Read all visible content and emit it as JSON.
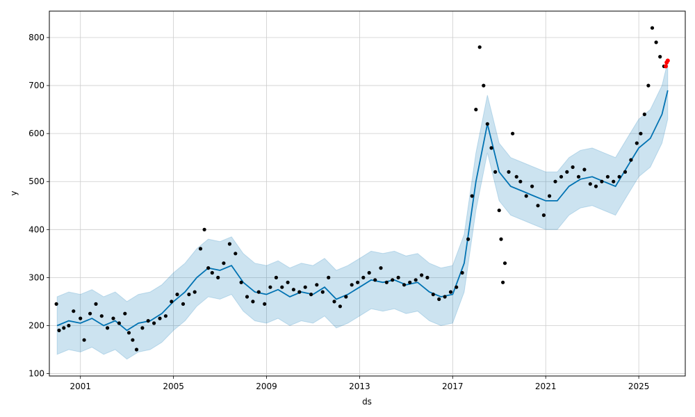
{
  "chart_data": {
    "type": "line",
    "title": "",
    "xlabel": "ds",
    "ylabel": "y",
    "xlim": [
      "1999-09-01",
      "2027-01-01"
    ],
    "ylim": [
      95,
      855
    ],
    "x_ticks": [
      "2001",
      "2005",
      "2009",
      "2013",
      "2017",
      "2021",
      "2025"
    ],
    "y_ticks": [
      100,
      200,
      300,
      400,
      500,
      600,
      700,
      800
    ],
    "grid": true,
    "legend": "none",
    "colors": {
      "observed": "#000000",
      "forecast": "#0072B2",
      "interval": "#0072B2",
      "recent": "#ff0000"
    },
    "series": [
      {
        "name": "",
        "kind": "forecast",
        "x": [
          "2000-01-01",
          "2000-07-01",
          "2001-01-01",
          "2001-07-01",
          "2002-01-01",
          "2002-07-01",
          "2003-01-01",
          "2003-07-01",
          "2004-01-01",
          "2004-07-01",
          "2005-01-01",
          "2005-07-01",
          "2006-01-01",
          "2006-07-01",
          "2007-01-01",
          "2007-07-01",
          "2008-01-01",
          "2008-07-01",
          "2009-01-01",
          "2009-07-01",
          "2010-01-01",
          "2010-07-01",
          "2011-01-01",
          "2011-07-01",
          "2012-01-01",
          "2012-07-01",
          "2013-01-01",
          "2013-07-01",
          "2014-01-01",
          "2014-07-01",
          "2015-01-01",
          "2015-07-01",
          "2016-01-01",
          "2016-07-01",
          "2017-01-01",
          "2017-07-01",
          "2018-01-01",
          "2018-07-01",
          "2019-01-01",
          "2019-07-01",
          "2020-01-01",
          "2020-07-01",
          "2021-01-01",
          "2021-07-01",
          "2022-01-01",
          "2022-07-01",
          "2023-01-01",
          "2023-07-01",
          "2024-01-01",
          "2024-07-01",
          "2025-01-01",
          "2025-07-01",
          "2026-01-01",
          "2026-04-01"
        ],
        "values": [
          200,
          210,
          205,
          215,
          200,
          210,
          190,
          205,
          210,
          225,
          250,
          270,
          300,
          320,
          315,
          325,
          290,
          270,
          265,
          275,
          260,
          270,
          265,
          280,
          255,
          265,
          280,
          295,
          290,
          295,
          285,
          290,
          270,
          260,
          265,
          330,
          500,
          620,
          520,
          490,
          480,
          470,
          460,
          460,
          490,
          505,
          510,
          500,
          490,
          530,
          570,
          590,
          640,
          690
        ]
      },
      {
        "name": "",
        "kind": "uncertainty_band",
        "x": [
          "2000-01-01",
          "2000-07-01",
          "2001-01-01",
          "2001-07-01",
          "2002-01-01",
          "2002-07-01",
          "2003-01-01",
          "2003-07-01",
          "2004-01-01",
          "2004-07-01",
          "2005-01-01",
          "2005-07-01",
          "2006-01-01",
          "2006-07-01",
          "2007-01-01",
          "2007-07-01",
          "2008-01-01",
          "2008-07-01",
          "2009-01-01",
          "2009-07-01",
          "2010-01-01",
          "2010-07-01",
          "2011-01-01",
          "2011-07-01",
          "2012-01-01",
          "2012-07-01",
          "2013-01-01",
          "2013-07-01",
          "2014-01-01",
          "2014-07-01",
          "2015-01-01",
          "2015-07-01",
          "2016-01-01",
          "2016-07-01",
          "2017-01-01",
          "2017-07-01",
          "2018-01-01",
          "2018-07-01",
          "2019-01-01",
          "2019-07-01",
          "2020-01-01",
          "2020-07-01",
          "2021-01-01",
          "2021-07-01",
          "2022-01-01",
          "2022-07-01",
          "2023-01-01",
          "2023-07-01",
          "2024-01-01",
          "2024-07-01",
          "2025-01-01",
          "2025-07-01",
          "2026-01-01",
          "2026-04-01"
        ],
        "lower": [
          140,
          150,
          145,
          155,
          140,
          150,
          130,
          145,
          150,
          165,
          190,
          210,
          240,
          260,
          255,
          265,
          230,
          210,
          205,
          215,
          200,
          210,
          205,
          220,
          195,
          205,
          220,
          235,
          230,
          235,
          225,
          230,
          210,
          200,
          205,
          270,
          440,
          560,
          460,
          430,
          420,
          410,
          400,
          400,
          430,
          445,
          450,
          440,
          430,
          470,
          510,
          530,
          580,
          630
        ],
        "upper": [
          260,
          270,
          265,
          275,
          260,
          270,
          250,
          265,
          270,
          285,
          310,
          330,
          360,
          380,
          375,
          385,
          350,
          330,
          325,
          335,
          320,
          330,
          325,
          340,
          315,
          325,
          340,
          355,
          350,
          355,
          345,
          350,
          330,
          320,
          325,
          390,
          560,
          680,
          580,
          550,
          540,
          530,
          520,
          520,
          550,
          565,
          570,
          560,
          550,
          590,
          630,
          650,
          700,
          750
        ]
      },
      {
        "name": "",
        "kind": "observed",
        "x": [
          "1999-12-20",
          "2000-02-01",
          "2000-04-15",
          "2000-07-01",
          "2000-09-15",
          "2001-01-01",
          "2001-03-01",
          "2001-06-01",
          "2001-09-01",
          "2001-12-01",
          "2002-03-01",
          "2002-06-01",
          "2002-09-01",
          "2002-12-01",
          "2003-02-01",
          "2003-04-01",
          "2003-06-01",
          "2003-09-01",
          "2003-12-01",
          "2004-03-01",
          "2004-06-01",
          "2004-09-01",
          "2004-12-01",
          "2005-03-01",
          "2005-06-01",
          "2005-09-01",
          "2005-12-01",
          "2006-03-01",
          "2006-05-01",
          "2006-07-01",
          "2006-09-01",
          "2006-12-01",
          "2007-03-01",
          "2007-06-01",
          "2007-09-01",
          "2007-12-01",
          "2008-03-01",
          "2008-06-01",
          "2008-09-01",
          "2008-12-01",
          "2009-03-01",
          "2009-06-01",
          "2009-09-01",
          "2009-12-01",
          "2010-03-01",
          "2010-06-01",
          "2010-09-01",
          "2010-12-01",
          "2011-03-01",
          "2011-06-01",
          "2011-09-01",
          "2011-12-01",
          "2012-03-01",
          "2012-06-01",
          "2012-09-01",
          "2012-12-01",
          "2013-03-01",
          "2013-06-01",
          "2013-09-01",
          "2013-12-01",
          "2014-03-01",
          "2014-06-01",
          "2014-09-01",
          "2014-12-01",
          "2015-03-01",
          "2015-06-01",
          "2015-09-01",
          "2015-12-01",
          "2016-03-01",
          "2016-06-01",
          "2016-09-01",
          "2016-12-01",
          "2017-03-01",
          "2017-06-01",
          "2017-09-01",
          "2017-11-01",
          "2018-01-01",
          "2018-03-01",
          "2018-05-01",
          "2018-07-01",
          "2018-09-01",
          "2018-11-01",
          "2019-01-01",
          "2019-02-01",
          "2019-03-01",
          "2019-04-01",
          "2019-06-01",
          "2019-08-01",
          "2019-10-01",
          "2019-12-01",
          "2020-03-01",
          "2020-06-01",
          "2020-09-01",
          "2020-12-01",
          "2021-03-01",
          "2021-06-01",
          "2021-09-01",
          "2021-12-01",
          "2022-03-01",
          "2022-06-01",
          "2022-09-01",
          "2022-12-01",
          "2023-03-01",
          "2023-06-01",
          "2023-09-01",
          "2023-12-01",
          "2024-03-01",
          "2024-06-01",
          "2024-09-01",
          "2024-12-01",
          "2025-02-01",
          "2025-04-01",
          "2025-06-01",
          "2025-08-01",
          "2025-10-01",
          "2025-12-01",
          "2026-02-01"
        ],
        "values": [
          245,
          190,
          195,
          200,
          230,
          215,
          170,
          225,
          245,
          220,
          195,
          215,
          205,
          225,
          185,
          170,
          150,
          195,
          210,
          205,
          215,
          220,
          250,
          265,
          245,
          265,
          270,
          360,
          400,
          320,
          310,
          300,
          330,
          370,
          350,
          290,
          260,
          250,
          270,
          245,
          280,
          300,
          280,
          290,
          275,
          270,
          280,
          265,
          285,
          270,
          300,
          250,
          240,
          260,
          285,
          290,
          300,
          310,
          295,
          320,
          290,
          295,
          300,
          285,
          290,
          295,
          305,
          300,
          265,
          255,
          260,
          270,
          280,
          310,
          380,
          470,
          650,
          780,
          700,
          620,
          570,
          520,
          440,
          380,
          290,
          330,
          520,
          600,
          510,
          500,
          470,
          490,
          450,
          430,
          470,
          500,
          510,
          520,
          530,
          510,
          525,
          495,
          490,
          500,
          510,
          500,
          510,
          520,
          545,
          580,
          600,
          640,
          700,
          820,
          790,
          760,
          740
        ]
      },
      {
        "name": "",
        "kind": "recent",
        "x": [
          "2026-03-01",
          "2026-03-15",
          "2026-04-01"
        ],
        "values": [
          740,
          748,
          752
        ]
      }
    ]
  }
}
